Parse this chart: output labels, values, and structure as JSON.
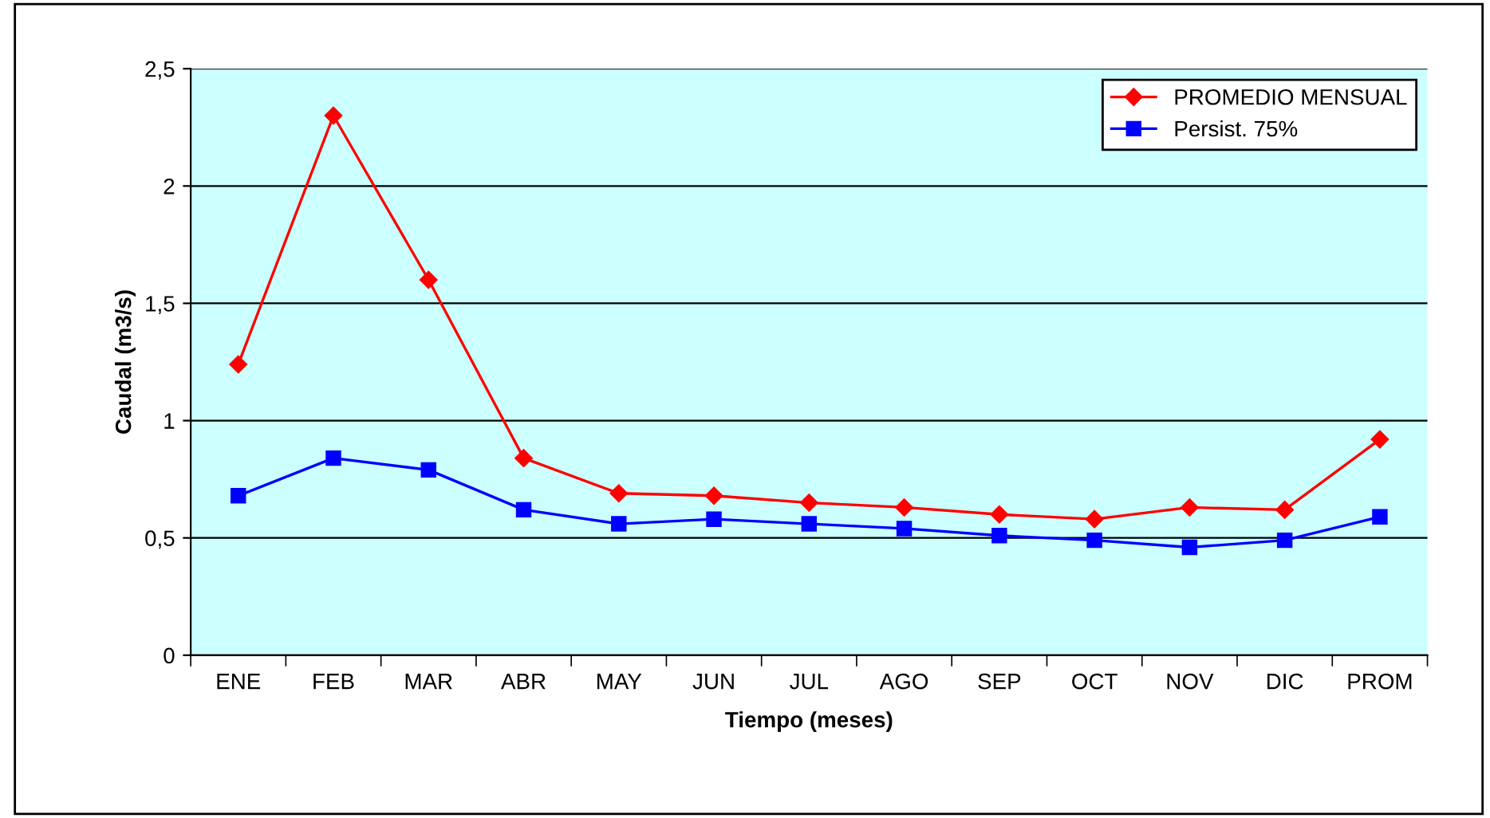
{
  "chart_data": {
    "type": "line",
    "xlabel": "Tiempo (meses)",
    "ylabel": "Caudal (m3/s)",
    "categories": [
      "ENE",
      "FEB",
      "MAR",
      "ABR",
      "MAY",
      "JUN",
      "JUL",
      "AGO",
      "SEP",
      "OCT",
      "NOV",
      "DIC",
      "PROM"
    ],
    "series": [
      {
        "name": "PROMEDIO MENSUAL",
        "color": "#ff0000",
        "marker": "diamond",
        "values": [
          1.24,
          2.3,
          1.6,
          0.84,
          0.69,
          0.68,
          0.65,
          0.63,
          0.6,
          0.58,
          0.63,
          0.62,
          0.92
        ]
      },
      {
        "name": "Persist. 75%",
        "color": "#0000ff",
        "marker": "square",
        "values": [
          0.68,
          0.84,
          0.79,
          0.62,
          0.56,
          0.58,
          0.56,
          0.54,
          0.51,
          0.49,
          0.46,
          0.49,
          0.59
        ]
      }
    ],
    "ylim": [
      0,
      2.5
    ],
    "yticks": [
      0,
      {
        "value": 0.5,
        "label": "0,5"
      },
      1,
      {
        "value": 1.5,
        "label": "1,5"
      },
      2,
      {
        "value": 2.5,
        "label": "2,5"
      }
    ],
    "grid": "y",
    "legend": "top right",
    "line_style": "solid"
  }
}
